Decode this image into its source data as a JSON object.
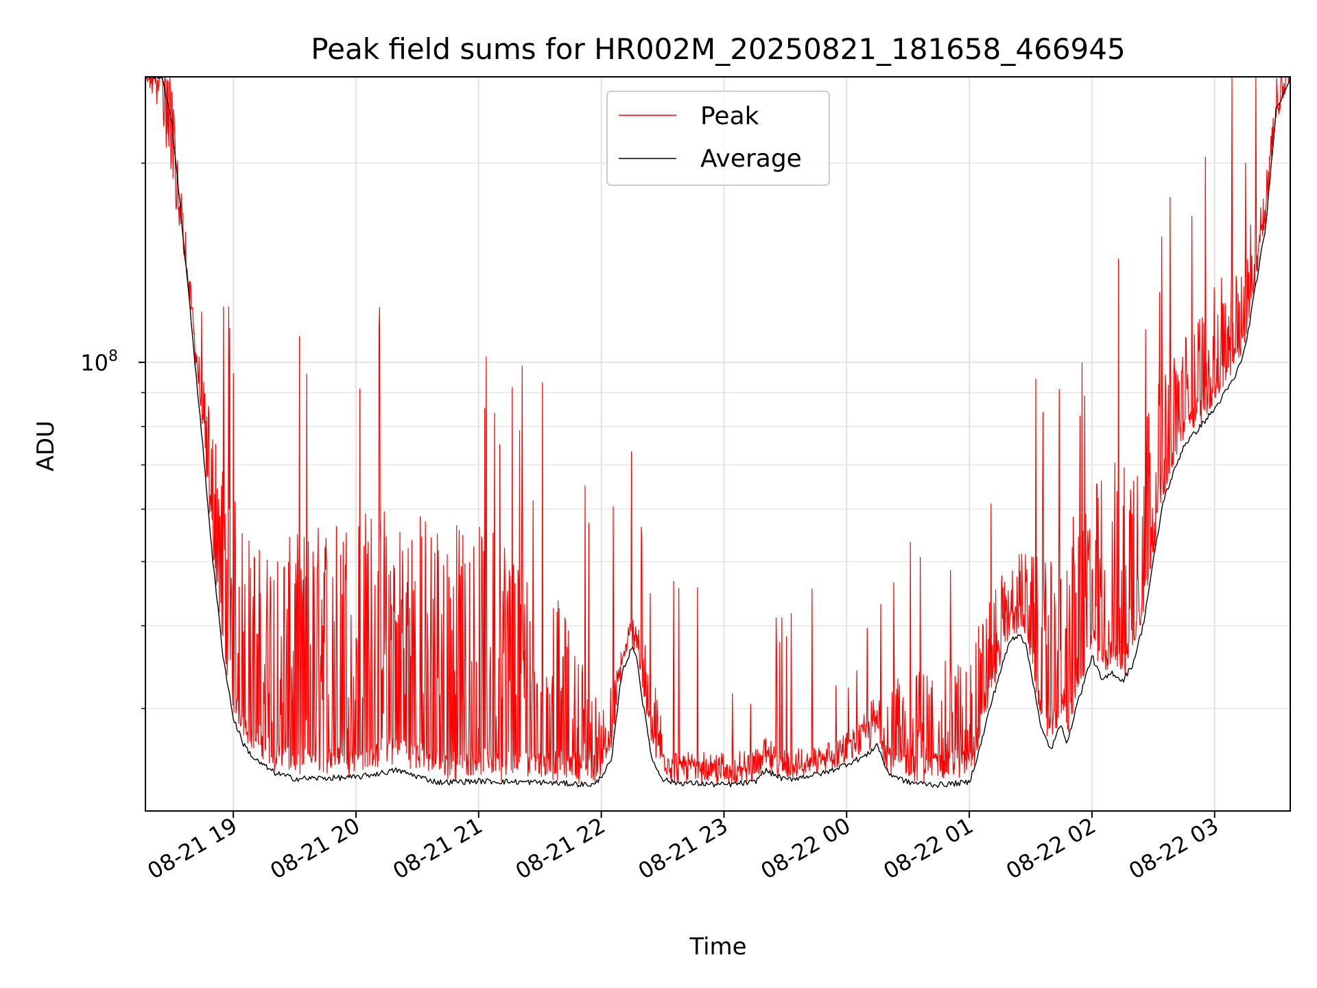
{
  "chart_data": {
    "type": "line",
    "title": "Peak field sums for HR002M_20250821_181658_466945",
    "xlabel": "Time",
    "ylabel": "ADU",
    "yscale": "log",
    "x_tick_labels": [
      "08-21 19",
      "08-21 20",
      "08-21 21",
      "08-21 22",
      "08-21 23",
      "08-22 00",
      "08-22 01",
      "08-22 02",
      "08-22 03"
    ],
    "y_tick_major": {
      "value": 100000000,
      "label_base": "10",
      "label_exp": "8"
    },
    "xlim": [
      "2025-08-21 18:17",
      "2025-08-22 03:37"
    ],
    "ylim": [
      21000000,
      270000000
    ],
    "grid": true,
    "legend_position": "upper center",
    "series": [
      {
        "name": "Peak",
        "color": "#ff0000",
        "spiky": true,
        "x": [
          "2025-08-21 18:17",
          "2025-08-21 18:25",
          "2025-08-21 18:35",
          "2025-08-21 18:45",
          "2025-08-21 18:55",
          "2025-08-21 19:05",
          "2025-08-21 19:15",
          "2025-08-21 19:30",
          "2025-08-21 19:45",
          "2025-08-21 20:00",
          "2025-08-21 20:15",
          "2025-08-21 20:30",
          "2025-08-21 20:45",
          "2025-08-21 21:00",
          "2025-08-21 21:15",
          "2025-08-21 21:30",
          "2025-08-21 21:45",
          "2025-08-21 22:00",
          "2025-08-21 22:10",
          "2025-08-21 22:17",
          "2025-08-21 22:25",
          "2025-08-21 22:35",
          "2025-08-21 22:50",
          "2025-08-21 23:05",
          "2025-08-21 23:20",
          "2025-08-21 23:40",
          "2025-08-22 00:00",
          "2025-08-22 00:15",
          "2025-08-22 00:30",
          "2025-08-22 00:45",
          "2025-08-22 01:00",
          "2025-08-22 01:10",
          "2025-08-22 01:25",
          "2025-08-22 01:40",
          "2025-08-22 01:50",
          "2025-08-22 02:00",
          "2025-08-22 02:15",
          "2025-08-22 02:30",
          "2025-08-22 02:45",
          "2025-08-22 03:00",
          "2025-08-22 03:15",
          "2025-08-22 03:25",
          "2025-08-22 03:37"
        ],
        "y": [
          270000000,
          230000000,
          150000000,
          95000000,
          70000000,
          57000000,
          52000000,
          55000000,
          58000000,
          60000000,
          62000000,
          60000000,
          58000000,
          57000000,
          56000000,
          50000000,
          40000000,
          30000000,
          36000000,
          43000000,
          34000000,
          25000000,
          25000000,
          24500000,
          26000000,
          25000000,
          26500000,
          32000000,
          34000000,
          35000000,
          37000000,
          45000000,
          52000000,
          50000000,
          58000000,
          65000000,
          75000000,
          90000000,
          110000000,
          130000000,
          150000000,
          200000000,
          270000000
        ]
      },
      {
        "name": "Average",
        "color": "#000000",
        "spiky": false,
        "x": [
          "2025-08-21 18:17",
          "2025-08-21 18:25",
          "2025-08-21 18:30",
          "2025-08-21 18:35",
          "2025-08-21 18:40",
          "2025-08-21 18:45",
          "2025-08-21 18:50",
          "2025-08-21 18:55",
          "2025-08-21 19:00",
          "2025-08-21 19:05",
          "2025-08-21 19:10",
          "2025-08-21 19:20",
          "2025-08-21 19:30",
          "2025-08-21 20:00",
          "2025-08-21 20:20",
          "2025-08-21 20:40",
          "2025-08-21 21:00",
          "2025-08-21 21:30",
          "2025-08-21 21:57",
          "2025-08-21 22:05",
          "2025-08-21 22:10",
          "2025-08-21 22:15",
          "2025-08-21 22:17",
          "2025-08-21 22:20",
          "2025-08-21 22:25",
          "2025-08-21 22:30",
          "2025-08-21 22:35",
          "2025-08-21 23:00",
          "2025-08-21 23:15",
          "2025-08-21 23:20",
          "2025-08-21 23:30",
          "2025-08-21 23:50",
          "2025-08-22 00:10",
          "2025-08-22 00:15",
          "2025-08-22 00:20",
          "2025-08-22 00:30",
          "2025-08-22 00:45",
          "2025-08-22 01:00",
          "2025-08-22 01:05",
          "2025-08-22 01:10",
          "2025-08-22 01:15",
          "2025-08-22 01:20",
          "2025-08-22 01:25",
          "2025-08-22 01:28",
          "2025-08-22 01:32",
          "2025-08-22 01:35",
          "2025-08-22 01:40",
          "2025-08-22 01:45",
          "2025-08-22 01:48",
          "2025-08-22 01:52",
          "2025-08-22 01:55",
          "2025-08-22 02:00",
          "2025-08-22 02:05",
          "2025-08-22 02:10",
          "2025-08-22 02:15",
          "2025-08-22 02:20",
          "2025-08-22 02:25",
          "2025-08-22 02:30",
          "2025-08-22 02:35",
          "2025-08-22 02:45",
          "2025-08-22 02:50",
          "2025-08-22 03:00",
          "2025-08-22 03:10",
          "2025-08-22 03:15",
          "2025-08-22 03:20",
          "2025-08-22 03:25",
          "2025-08-22 03:30",
          "2025-08-22 03:37"
        ],
        "y": [
          270000000,
          270000000,
          230000000,
          160000000,
          110000000,
          75000000,
          50000000,
          36000000,
          29000000,
          26500000,
          25200000,
          24000000,
          23500000,
          23600000,
          24200000,
          23200000,
          23300000,
          23200000,
          23000000,
          25000000,
          34000000,
          37000000,
          36500000,
          31000000,
          25000000,
          23500000,
          23200000,
          23000000,
          23200000,
          24200000,
          23400000,
          24000000,
          25500000,
          26500000,
          24000000,
          23200000,
          23000000,
          23200000,
          26000000,
          30000000,
          34000000,
          38000000,
          39000000,
          37000000,
          32000000,
          28000000,
          26000000,
          28500000,
          26500000,
          30000000,
          32000000,
          36000000,
          33000000,
          34000000,
          33000000,
          35000000,
          40000000,
          50000000,
          62000000,
          75000000,
          78000000,
          85000000,
          95000000,
          105000000,
          130000000,
          160000000,
          240000000,
          270000000
        ]
      }
    ]
  }
}
